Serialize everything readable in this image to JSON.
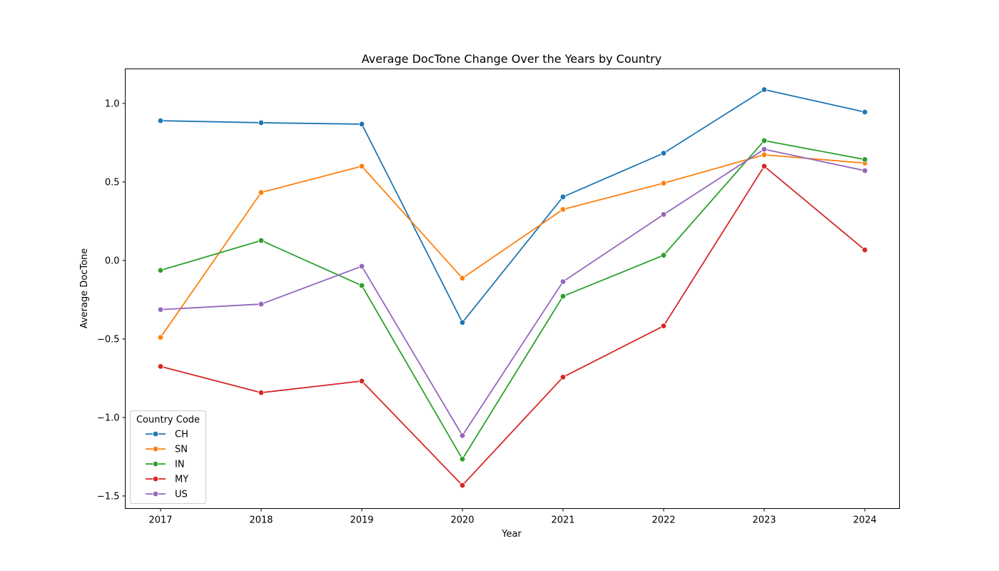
{
  "chart_data": {
    "type": "line",
    "title": "Average DocTone Change Over the Years by Country",
    "xlabel": "Year",
    "ylabel": "Average DocTone",
    "x": [
      2017,
      2018,
      2019,
      2020,
      2021,
      2022,
      2023,
      2024
    ],
    "x_tick_labels": [
      "2017",
      "2018",
      "2019",
      "2020",
      "2021",
      "2022",
      "2023",
      "2024"
    ],
    "ylim": [
      -1.58,
      1.22
    ],
    "y_ticks": [
      -1.5,
      -1.0,
      -0.5,
      0.0,
      0.5,
      1.0
    ],
    "y_tick_labels": [
      "−1.5",
      "−1.0",
      "−0.5",
      "0.0",
      "0.5",
      "1.0"
    ],
    "grid": false,
    "markers": true,
    "legend": {
      "title": "Country Code",
      "placement": "lower-left"
    },
    "series": [
      {
        "name": "CH",
        "color": "#1f77b4",
        "values": [
          0.89,
          0.877,
          0.868,
          -0.395,
          0.405,
          0.683,
          1.088,
          0.945
        ]
      },
      {
        "name": "SN",
        "color": "#ff7f0e",
        "values": [
          -0.49,
          0.433,
          0.6,
          -0.113,
          0.325,
          0.492,
          0.673,
          0.62
        ]
      },
      {
        "name": "IN",
        "color": "#2ca02c",
        "values": [
          -0.063,
          0.127,
          -0.16,
          -1.265,
          -0.228,
          0.033,
          0.763,
          0.643
        ]
      },
      {
        "name": "MY",
        "color": "#d62728",
        "values": [
          -0.675,
          -0.842,
          -0.768,
          -1.432,
          -0.743,
          -0.417,
          0.6,
          0.067
        ]
      },
      {
        "name": "US",
        "color": "#9467bd",
        "values": [
          -0.313,
          -0.278,
          -0.037,
          -1.115,
          -0.135,
          0.293,
          0.708,
          0.572
        ]
      }
    ]
  }
}
